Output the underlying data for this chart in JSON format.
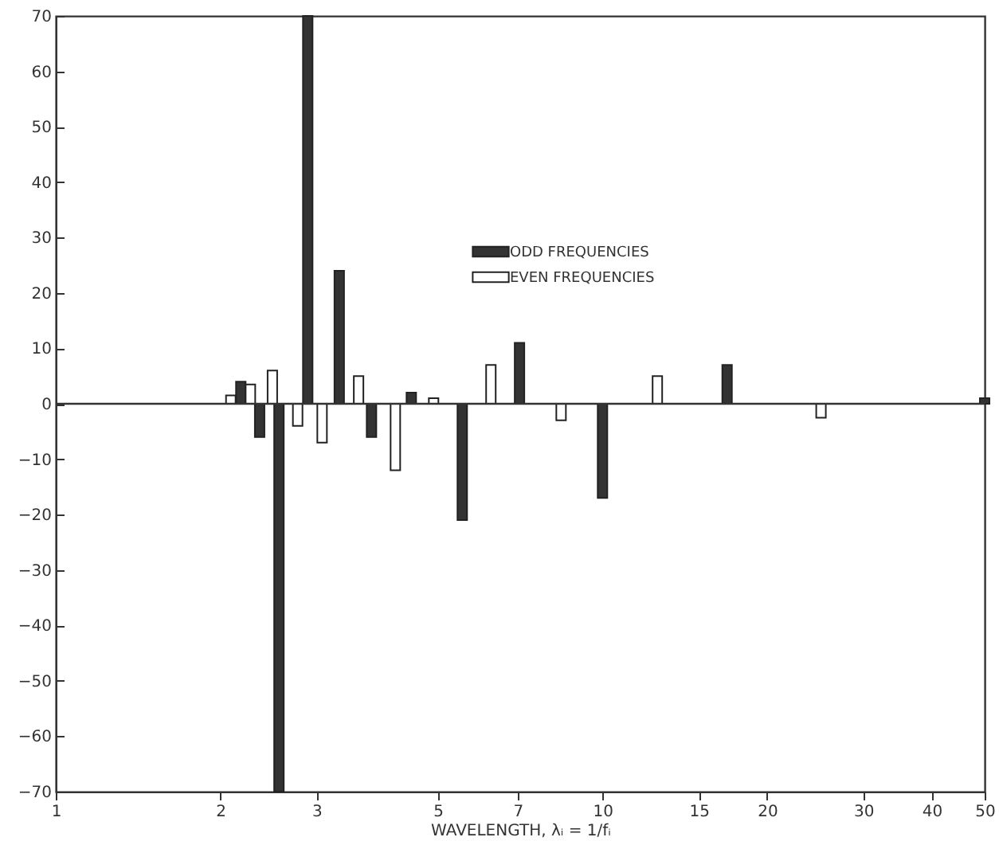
{
  "chart_data": {
    "type": "bar",
    "xlabel": "WAVELENGTH, λᵢ = 1/fᵢ",
    "log": "x",
    "legend": "top",
    "grid": false,
    "xlim": [
      1,
      50
    ],
    "xticks": [
      1,
      2,
      3,
      5,
      7,
      10,
      15,
      20,
      30,
      40,
      50
    ],
    "ylim": [
      -70,
      70
    ],
    "yticks": [
      -70,
      -60,
      -50,
      -40,
      -30,
      -20,
      -10,
      0,
      10,
      20,
      30,
      40,
      50,
      60,
      70
    ],
    "ref_lines": [
      {
        "axis": "y",
        "value": 0
      }
    ],
    "series": [
      {
        "name": "ODD FREQUENCIES",
        "color": "#333333",
        "x": [
          2.18,
          2.36,
          2.56,
          2.89,
          3.3,
          3.78,
          4.47,
          5.54,
          7.05,
          10,
          16.9,
          50
        ],
        "values": [
          4,
          -6,
          -70,
          70,
          24,
          -6,
          2,
          -21,
          11,
          -17,
          7,
          1
        ]
      },
      {
        "name": "EVEN FREQUENCIES",
        "color": "#ffffff",
        "x": [
          2.09,
          2.27,
          2.49,
          2.77,
          3.07,
          3.58,
          4.18,
          4.91,
          6.25,
          8.4,
          12.6,
          25.1
        ],
        "values": [
          1.5,
          3.5,
          6,
          -4,
          -7,
          5,
          -12,
          1,
          7,
          -3,
          5,
          -2.5
        ]
      }
    ]
  }
}
